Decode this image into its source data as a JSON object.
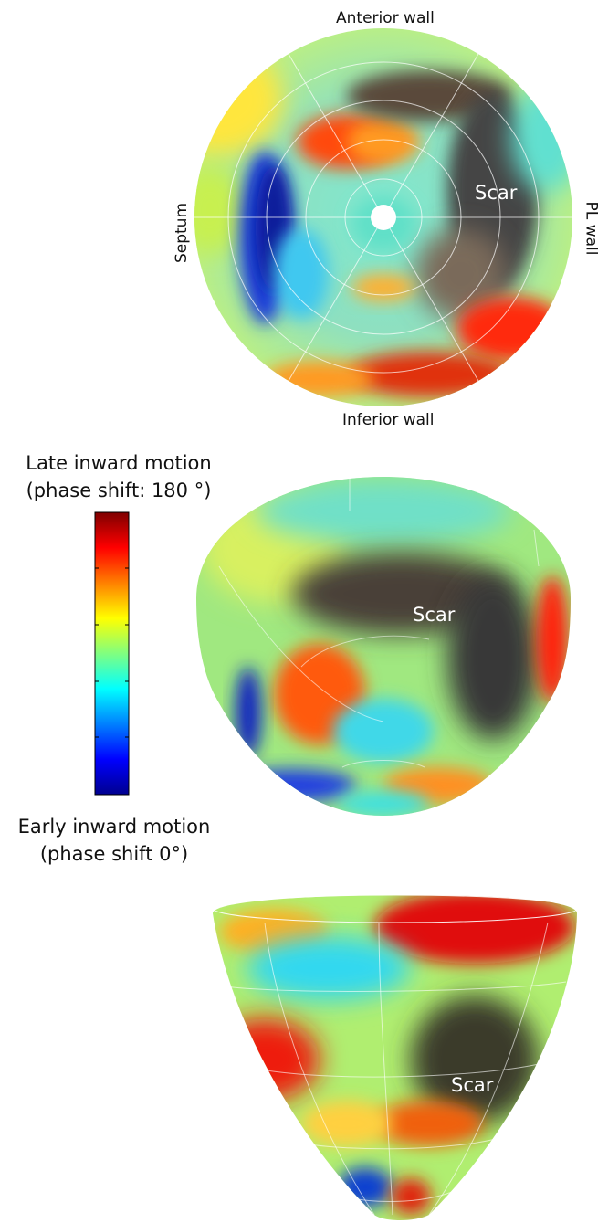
{
  "polar_map": {
    "top_label": "Anterior wall",
    "bottom_label": "Inferior wall",
    "left_label": "Septum",
    "right_label": "PL wall",
    "scar_label": "Scar"
  },
  "colorbar": {
    "top_title_line1": "Late inward motion",
    "top_title_line2": "(phase shift: 180 °)",
    "bottom_title_line1": "Early inward motion",
    "bottom_title_line2": "(phase shift 0°)",
    "colors": [
      "#7f0000",
      "#ff0000",
      "#ff8000",
      "#ffff00",
      "#80ff80",
      "#00ffff",
      "#0080ff",
      "#0000ff",
      "#00008f"
    ]
  },
  "view_top_down": {
    "scar_label": "Scar"
  },
  "view_side": {
    "scar_label": "Scar"
  }
}
